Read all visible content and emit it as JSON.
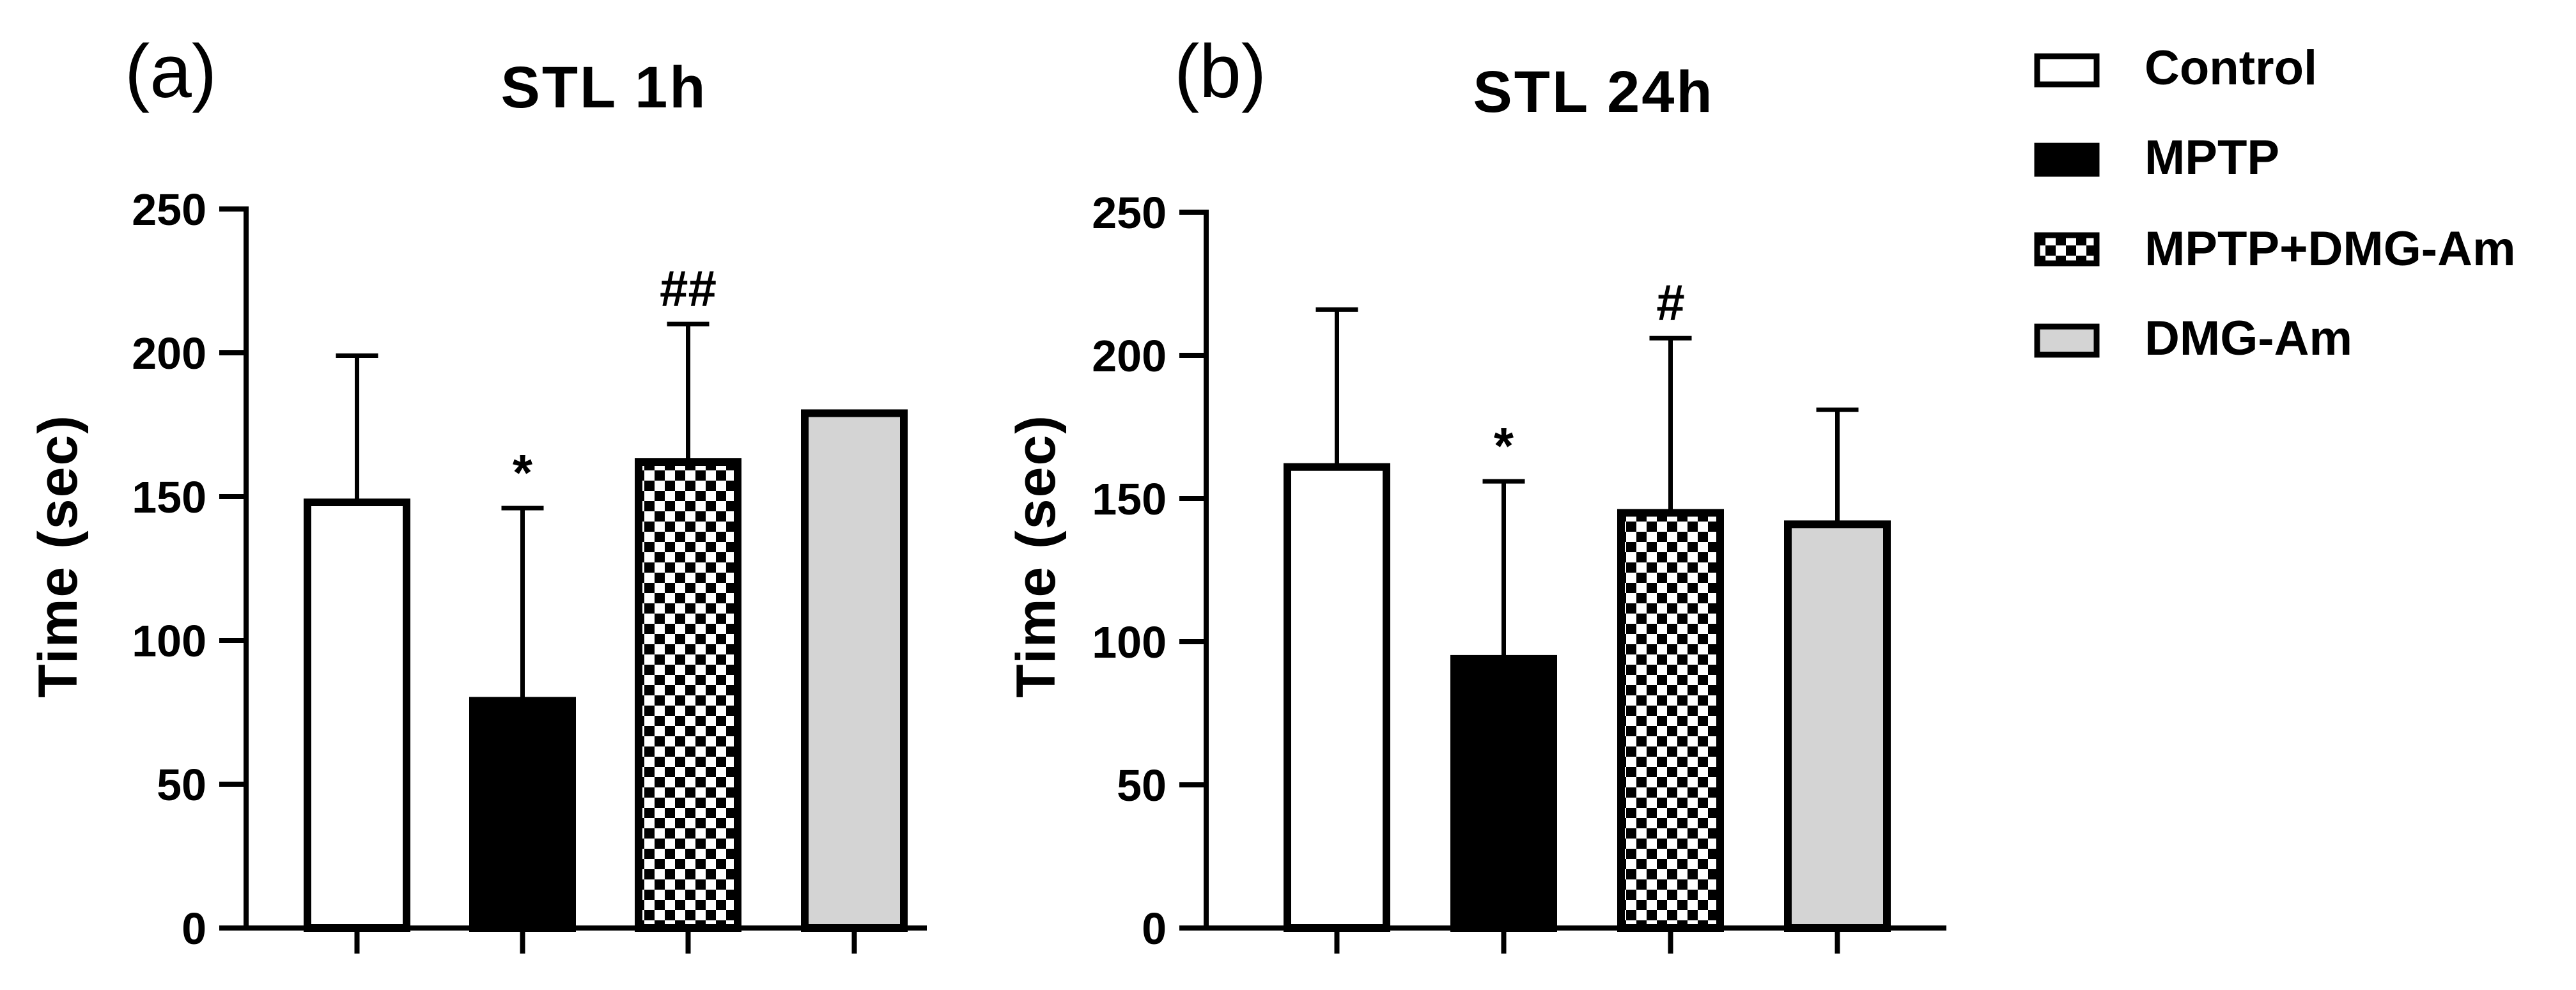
{
  "chart_data": [
    {
      "type": "bar",
      "panel_label": "(a)",
      "title": "STL 1h",
      "xlabel": "",
      "ylabel": "Time (sec)",
      "ylim": [
        0,
        250
      ],
      "yticks": [
        0,
        50,
        100,
        150,
        200,
        250
      ],
      "categories": [
        "Control",
        "MPTP",
        "MPTP+DMG-Am",
        "DMG-Am"
      ],
      "values": [
        148,
        79,
        162,
        179
      ],
      "errors": [
        51,
        67,
        48,
        0
      ],
      "annotations": [
        "",
        "*",
        "##",
        ""
      ]
    },
    {
      "type": "bar",
      "panel_label": "(b)",
      "title": "STL 24h",
      "xlabel": "",
      "ylabel": "Time (sec)",
      "ylim": [
        0,
        250
      ],
      "yticks": [
        0,
        50,
        100,
        150,
        200,
        250
      ],
      "categories": [
        "Control",
        "MPTP",
        "MPTP+DMG-Am",
        "DMG-Am"
      ],
      "values": [
        161,
        94,
        145,
        141
      ],
      "errors": [
        55,
        62,
        61,
        40
      ],
      "annotations": [
        "",
        "*",
        "#",
        ""
      ]
    }
  ],
  "legend": {
    "placement": "top-right",
    "items": [
      {
        "label": "Control",
        "fill": "white"
      },
      {
        "label": "MPTP",
        "fill": "black"
      },
      {
        "label": "MPTP+DMG-Am",
        "fill": "checker"
      },
      {
        "label": "DMG-Am",
        "fill": "gray"
      }
    ]
  },
  "colors": {
    "stroke": "#000000",
    "control": "#ffffff",
    "mptp": "#000000",
    "checker_dark": "#000000",
    "checker_light": "#ffffff",
    "dmg_am": "#d4d4d4"
  }
}
